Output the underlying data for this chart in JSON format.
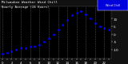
{
  "title": "Milwaukee Weather Wind Chill",
  "subtitle": "Hourly Average (24 Hours)",
  "hours": [
    0,
    1,
    2,
    3,
    4,
    5,
    6,
    7,
    8,
    9,
    10,
    11,
    12,
    13,
    14,
    15,
    16,
    17,
    18,
    19,
    20,
    21,
    22,
    23
  ],
  "wind_chill": [
    -13,
    -12,
    -11,
    -10,
    -9,
    -9,
    -8,
    -8,
    -7,
    -5,
    -3,
    0,
    3,
    6,
    9,
    12,
    14,
    15,
    13,
    10,
    7,
    5,
    4,
    3
  ],
  "dot_color": "#0000ff",
  "bg_color": "#111111",
  "plot_bg": "#000000",
  "grid_color": "#555555",
  "ylim": [
    -16,
    18
  ],
  "legend_bg": "#0000dd",
  "legend_label": "Wind Chill",
  "ytick_values": [
    10,
    5,
    0,
    -5,
    -10
  ],
  "ytick_labels": [
    "10",
    "5",
    "0",
    "-5",
    "-10"
  ]
}
